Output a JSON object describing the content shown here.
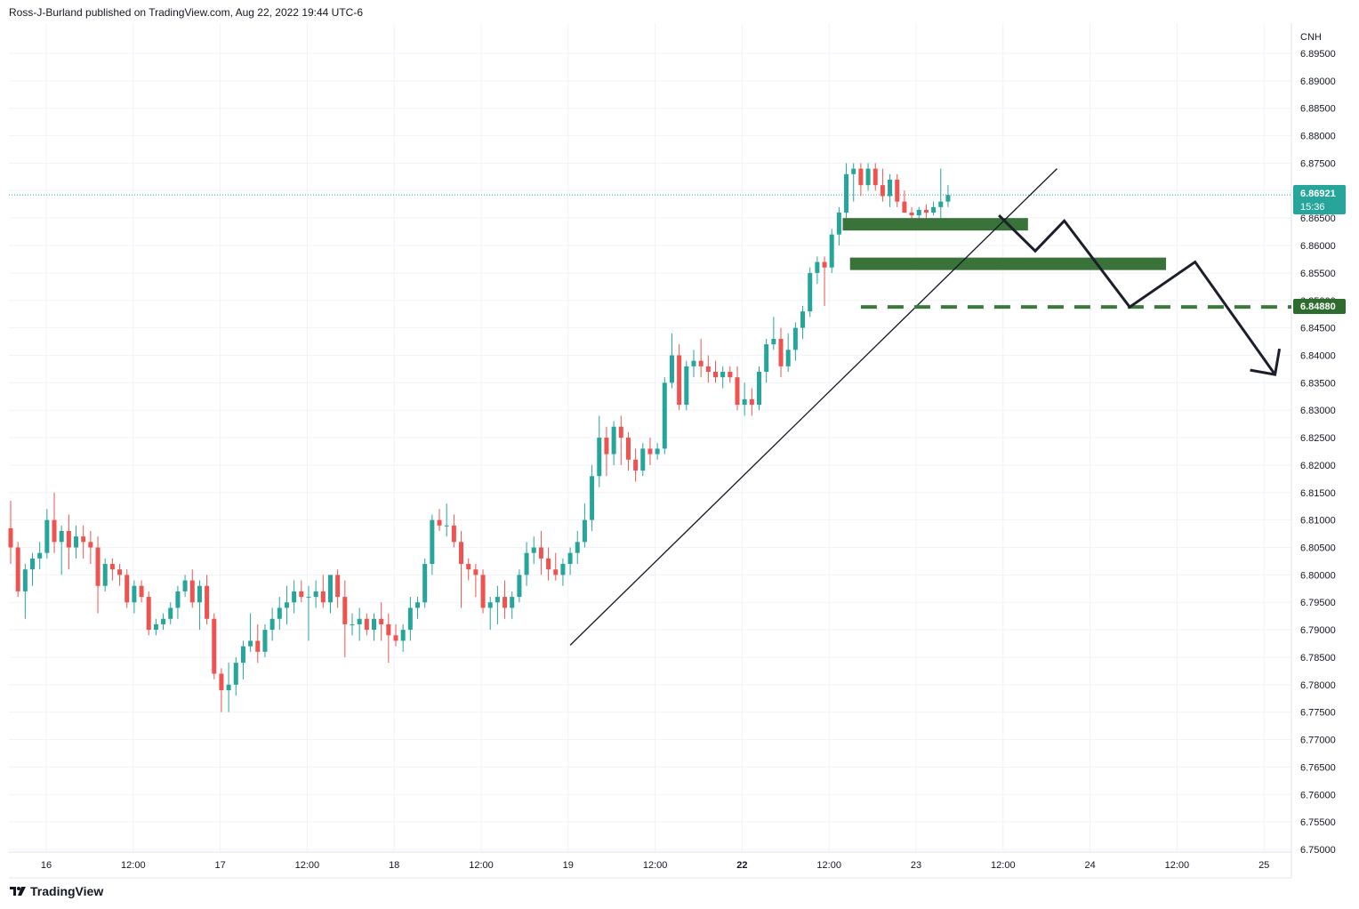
{
  "header": {
    "publish_line": "Ross-J-Burland published on TradingView.com, Aug 22, 2022 19:44 UTC-6"
  },
  "footer": {
    "brand": "TradingView",
    "logo_icon": "tradingview-logo-icon"
  },
  "colors": {
    "up": "#26a69a",
    "down": "#ef5350",
    "zone": "#2e6b2e",
    "support_line": "#3a7a3a",
    "price_badge": "#26a69a",
    "support_badge": "#2e6b2e",
    "grid": "#f0f3fa",
    "trendline": "#131722",
    "projection": "#1c1f2b",
    "last_price_line": "#26a69a"
  },
  "chart_data": {
    "type": "candlestick",
    "symbol": "CNH",
    "currency_label": "CNH",
    "x_tick_labels": [
      "16",
      "12:00",
      "17",
      "12:00",
      "18",
      "12:00",
      "19",
      "12:00",
      "22",
      "12:00",
      "23",
      "12:00",
      "24",
      "12:00",
      "25"
    ],
    "bold_x_ticks": [
      "22"
    ],
    "y_ticks": [
      "6.89500",
      "6.89000",
      "6.88500",
      "6.88000",
      "6.87500",
      "6.87000",
      "6.86500",
      "6.86000",
      "6.85500",
      "6.85000",
      "6.84500",
      "6.84000",
      "6.83500",
      "6.83000",
      "6.82500",
      "6.82000",
      "6.81500",
      "6.81000",
      "6.80500",
      "6.80000",
      "6.79500",
      "6.79000",
      "6.78500",
      "6.78000",
      "6.77500",
      "6.77000",
      "6.76500",
      "6.76000",
      "6.75500",
      "6.75000"
    ],
    "ylim": [
      6.7495,
      6.8995
    ],
    "grid": true,
    "last_price": {
      "value": "6.86921",
      "countdown": "15:36"
    },
    "support_level": {
      "value": "6.84880"
    },
    "candles": [
      {
        "o": 6.8085,
        "h": 6.8135,
        "l": 6.802,
        "c": 6.805
      },
      {
        "o": 6.805,
        "h": 6.806,
        "l": 6.796,
        "c": 6.797
      },
      {
        "o": 6.797,
        "h": 6.802,
        "l": 6.792,
        "c": 6.801
      },
      {
        "o": 6.801,
        "h": 6.804,
        "l": 6.798,
        "c": 6.803
      },
      {
        "o": 6.803,
        "h": 6.806,
        "l": 6.801,
        "c": 6.804
      },
      {
        "o": 6.804,
        "h": 6.812,
        "l": 6.803,
        "c": 6.81
      },
      {
        "o": 6.81,
        "h": 6.815,
        "l": 6.804,
        "c": 6.806
      },
      {
        "o": 6.806,
        "h": 6.809,
        "l": 6.8,
        "c": 6.808
      },
      {
        "o": 6.808,
        "h": 6.811,
        "l": 6.801,
        "c": 6.805
      },
      {
        "o": 6.805,
        "h": 6.809,
        "l": 6.803,
        "c": 6.807
      },
      {
        "o": 6.807,
        "h": 6.809,
        "l": 6.803,
        "c": 6.806
      },
      {
        "o": 6.806,
        "h": 6.808,
        "l": 6.802,
        "c": 6.805
      },
      {
        "o": 6.805,
        "h": 6.807,
        "l": 6.793,
        "c": 6.798
      },
      {
        "o": 6.798,
        "h": 6.803,
        "l": 6.797,
        "c": 6.802
      },
      {
        "o": 6.802,
        "h": 6.803,
        "l": 6.799,
        "c": 6.801
      },
      {
        "o": 6.801,
        "h": 6.802,
        "l": 6.798,
        "c": 6.8
      },
      {
        "o": 6.8,
        "h": 6.801,
        "l": 6.794,
        "c": 6.795
      },
      {
        "o": 6.795,
        "h": 6.799,
        "l": 6.793,
        "c": 6.798
      },
      {
        "o": 6.798,
        "h": 6.799,
        "l": 6.795,
        "c": 6.796
      },
      {
        "o": 6.796,
        "h": 6.797,
        "l": 6.789,
        "c": 6.79
      },
      {
        "o": 6.79,
        "h": 6.792,
        "l": 6.789,
        "c": 6.791
      },
      {
        "o": 6.791,
        "h": 6.793,
        "l": 6.79,
        "c": 6.792
      },
      {
        "o": 6.792,
        "h": 6.795,
        "l": 6.791,
        "c": 6.794
      },
      {
        "o": 6.794,
        "h": 6.798,
        "l": 6.792,
        "c": 6.797
      },
      {
        "o": 6.797,
        "h": 6.8,
        "l": 6.796,
        "c": 6.799
      },
      {
        "o": 6.799,
        "h": 6.801,
        "l": 6.794,
        "c": 6.795
      },
      {
        "o": 6.795,
        "h": 6.799,
        "l": 6.79,
        "c": 6.798
      },
      {
        "o": 6.798,
        "h": 6.8,
        "l": 6.791,
        "c": 6.792
      },
      {
        "o": 6.792,
        "h": 6.793,
        "l": 6.781,
        "c": 6.782
      },
      {
        "o": 6.782,
        "h": 6.783,
        "l": 6.775,
        "c": 6.779
      },
      {
        "o": 6.779,
        "h": 6.784,
        "l": 6.775,
        "c": 6.78
      },
      {
        "o": 6.78,
        "h": 6.785,
        "l": 6.778,
        "c": 6.784
      },
      {
        "o": 6.784,
        "h": 6.788,
        "l": 6.781,
        "c": 6.787
      },
      {
        "o": 6.787,
        "h": 6.793,
        "l": 6.786,
        "c": 6.788
      },
      {
        "o": 6.788,
        "h": 6.791,
        "l": 6.784,
        "c": 6.786
      },
      {
        "o": 6.786,
        "h": 6.791,
        "l": 6.785,
        "c": 6.79
      },
      {
        "o": 6.79,
        "h": 6.794,
        "l": 6.788,
        "c": 6.792
      },
      {
        "o": 6.792,
        "h": 6.796,
        "l": 6.79,
        "c": 6.794
      },
      {
        "o": 6.794,
        "h": 6.798,
        "l": 6.791,
        "c": 6.795
      },
      {
        "o": 6.795,
        "h": 6.799,
        "l": 6.793,
        "c": 6.797
      },
      {
        "o": 6.797,
        "h": 6.799,
        "l": 6.795,
        "c": 6.796
      },
      {
        "o": 6.796,
        "h": 6.798,
        "l": 6.788,
        "c": 6.796
      },
      {
        "o": 6.796,
        "h": 6.799,
        "l": 6.794,
        "c": 6.797
      },
      {
        "o": 6.797,
        "h": 6.8,
        "l": 6.794,
        "c": 6.795
      },
      {
        "o": 6.795,
        "h": 6.8,
        "l": 6.793,
        "c": 6.8
      },
      {
        "o": 6.8,
        "h": 6.801,
        "l": 6.794,
        "c": 6.796
      },
      {
        "o": 6.796,
        "h": 6.799,
        "l": 6.785,
        "c": 6.791
      },
      {
        "o": 6.791,
        "h": 6.793,
        "l": 6.789,
        "c": 6.791
      },
      {
        "o": 6.791,
        "h": 6.794,
        "l": 6.788,
        "c": 6.792
      },
      {
        "o": 6.792,
        "h": 6.793,
        "l": 6.789,
        "c": 6.79
      },
      {
        "o": 6.79,
        "h": 6.793,
        "l": 6.788,
        "c": 6.792
      },
      {
        "o": 6.792,
        "h": 6.795,
        "l": 6.788,
        "c": 6.791
      },
      {
        "o": 6.791,
        "h": 6.793,
        "l": 6.784,
        "c": 6.789
      },
      {
        "o": 6.789,
        "h": 6.791,
        "l": 6.787,
        "c": 6.788
      },
      {
        "o": 6.788,
        "h": 6.791,
        "l": 6.786,
        "c": 6.79
      },
      {
        "o": 6.79,
        "h": 6.796,
        "l": 6.788,
        "c": 6.794
      },
      {
        "o": 6.794,
        "h": 6.796,
        "l": 6.792,
        "c": 6.795
      },
      {
        "o": 6.795,
        "h": 6.803,
        "l": 6.794,
        "c": 6.802
      },
      {
        "o": 6.802,
        "h": 6.811,
        "l": 6.8,
        "c": 6.81
      },
      {
        "o": 6.81,
        "h": 6.812,
        "l": 6.808,
        "c": 6.809
      },
      {
        "o": 6.809,
        "h": 6.813,
        "l": 6.807,
        "c": 6.809
      },
      {
        "o": 6.809,
        "h": 6.811,
        "l": 6.805,
        "c": 6.806
      },
      {
        "o": 6.806,
        "h": 6.808,
        "l": 6.794,
        "c": 6.802
      },
      {
        "o": 6.802,
        "h": 6.803,
        "l": 6.799,
        "c": 6.801
      },
      {
        "o": 6.801,
        "h": 6.802,
        "l": 6.796,
        "c": 6.8
      },
      {
        "o": 6.8,
        "h": 6.801,
        "l": 6.793,
        "c": 6.794
      },
      {
        "o": 6.794,
        "h": 6.796,
        "l": 6.79,
        "c": 6.795
      },
      {
        "o": 6.795,
        "h": 6.798,
        "l": 6.791,
        "c": 6.796
      },
      {
        "o": 6.796,
        "h": 6.799,
        "l": 6.792,
        "c": 6.794
      },
      {
        "o": 6.794,
        "h": 6.797,
        "l": 6.792,
        "c": 6.796
      },
      {
        "o": 6.796,
        "h": 6.801,
        "l": 6.795,
        "c": 6.8
      },
      {
        "o": 6.8,
        "h": 6.806,
        "l": 6.798,
        "c": 6.804
      },
      {
        "o": 6.804,
        "h": 6.807,
        "l": 6.802,
        "c": 6.805
      },
      {
        "o": 6.805,
        "h": 6.808,
        "l": 6.8,
        "c": 6.803
      },
      {
        "o": 6.803,
        "h": 6.805,
        "l": 6.799,
        "c": 6.801
      },
      {
        "o": 6.801,
        "h": 6.804,
        "l": 6.799,
        "c": 6.8
      },
      {
        "o": 6.8,
        "h": 6.803,
        "l": 6.798,
        "c": 6.802
      },
      {
        "o": 6.802,
        "h": 6.805,
        "l": 6.8,
        "c": 6.804
      },
      {
        "o": 6.804,
        "h": 6.808,
        "l": 6.802,
        "c": 6.806
      },
      {
        "o": 6.806,
        "h": 6.813,
        "l": 6.805,
        "c": 6.81
      },
      {
        "o": 6.81,
        "h": 6.82,
        "l": 6.808,
        "c": 6.818
      },
      {
        "o": 6.818,
        "h": 6.829,
        "l": 6.816,
        "c": 6.825
      },
      {
        "o": 6.825,
        "h": 6.827,
        "l": 6.818,
        "c": 6.822
      },
      {
        "o": 6.822,
        "h": 6.828,
        "l": 6.82,
        "c": 6.827
      },
      {
        "o": 6.827,
        "h": 6.829,
        "l": 6.82,
        "c": 6.825
      },
      {
        "o": 6.825,
        "h": 6.826,
        "l": 6.819,
        "c": 6.821
      },
      {
        "o": 6.821,
        "h": 6.823,
        "l": 6.817,
        "c": 6.819
      },
      {
        "o": 6.819,
        "h": 6.824,
        "l": 6.818,
        "c": 6.823
      },
      {
        "o": 6.823,
        "h": 6.825,
        "l": 6.82,
        "c": 6.822
      },
      {
        "o": 6.822,
        "h": 6.824,
        "l": 6.821,
        "c": 6.823
      },
      {
        "o": 6.823,
        "h": 6.836,
        "l": 6.822,
        "c": 6.835
      },
      {
        "o": 6.835,
        "h": 6.844,
        "l": 6.834,
        "c": 6.84
      },
      {
        "o": 6.84,
        "h": 6.842,
        "l": 6.83,
        "c": 6.831
      },
      {
        "o": 6.831,
        "h": 6.839,
        "l": 6.83,
        "c": 6.838
      },
      {
        "o": 6.838,
        "h": 6.841,
        "l": 6.836,
        "c": 6.839
      },
      {
        "o": 6.839,
        "h": 6.843,
        "l": 6.836,
        "c": 6.838
      },
      {
        "o": 6.838,
        "h": 6.84,
        "l": 6.835,
        "c": 6.837
      },
      {
        "o": 6.837,
        "h": 6.839,
        "l": 6.835,
        "c": 6.836
      },
      {
        "o": 6.836,
        "h": 6.838,
        "l": 6.834,
        "c": 6.837
      },
      {
        "o": 6.837,
        "h": 6.838,
        "l": 6.835,
        "c": 6.836
      },
      {
        "o": 6.836,
        "h": 6.838,
        "l": 6.83,
        "c": 6.831
      },
      {
        "o": 6.831,
        "h": 6.835,
        "l": 6.829,
        "c": 6.832
      },
      {
        "o": 6.832,
        "h": 6.834,
        "l": 6.829,
        "c": 6.831
      },
      {
        "o": 6.831,
        "h": 6.838,
        "l": 6.83,
        "c": 6.837
      },
      {
        "o": 6.837,
        "h": 6.843,
        "l": 6.835,
        "c": 6.842
      },
      {
        "o": 6.842,
        "h": 6.847,
        "l": 6.841,
        "c": 6.843
      },
      {
        "o": 6.843,
        "h": 6.845,
        "l": 6.836,
        "c": 6.838
      },
      {
        "o": 6.838,
        "h": 6.844,
        "l": 6.837,
        "c": 6.841
      },
      {
        "o": 6.841,
        "h": 6.846,
        "l": 6.839,
        "c": 6.845
      },
      {
        "o": 6.845,
        "h": 6.849,
        "l": 6.843,
        "c": 6.848
      },
      {
        "o": 6.848,
        "h": 6.856,
        "l": 6.847,
        "c": 6.855
      },
      {
        "o": 6.855,
        "h": 6.858,
        "l": 6.853,
        "c": 6.857
      },
      {
        "o": 6.857,
        "h": 6.858,
        "l": 6.849,
        "c": 6.856
      },
      {
        "o": 6.856,
        "h": 6.863,
        "l": 6.855,
        "c": 6.862
      },
      {
        "o": 6.862,
        "h": 6.867,
        "l": 6.86,
        "c": 6.866
      },
      {
        "o": 6.866,
        "h": 6.875,
        "l": 6.865,
        "c": 6.873
      },
      {
        "o": 6.873,
        "h": 6.875,
        "l": 6.868,
        "c": 6.874
      },
      {
        "o": 6.874,
        "h": 6.875,
        "l": 6.869,
        "c": 6.871
      },
      {
        "o": 6.871,
        "h": 6.875,
        "l": 6.87,
        "c": 6.874
      },
      {
        "o": 6.874,
        "h": 6.875,
        "l": 6.87,
        "c": 6.871
      },
      {
        "o": 6.871,
        "h": 6.874,
        "l": 6.868,
        "c": 6.869
      },
      {
        "o": 6.869,
        "h": 6.873,
        "l": 6.867,
        "c": 6.872
      },
      {
        "o": 6.872,
        "h": 6.873,
        "l": 6.867,
        "c": 6.868
      },
      {
        "o": 6.868,
        "h": 6.87,
        "l": 6.866,
        "c": 6.866
      },
      {
        "o": 6.866,
        "h": 6.867,
        "l": 6.865,
        "c": 6.8655
      },
      {
        "o": 6.8655,
        "h": 6.867,
        "l": 6.865,
        "c": 6.8665
      },
      {
        "o": 6.8665,
        "h": 6.8675,
        "l": 6.865,
        "c": 6.866
      },
      {
        "o": 6.866,
        "h": 6.868,
        "l": 6.8655,
        "c": 6.867
      },
      {
        "o": 6.867,
        "h": 6.874,
        "l": 6.865,
        "c": 6.868
      },
      {
        "o": 6.868,
        "h": 6.871,
        "l": 6.867,
        "c": 6.8692
      }
    ],
    "zones": [
      {
        "from_candle": 115,
        "to_candle": 140,
        "top": 6.865,
        "bottom": 6.8635
      },
      {
        "from_candle": 116,
        "to_candle": 159,
        "top": 6.8578,
        "bottom": 6.8568
      }
    ],
    "trendline": {
      "from": {
        "candle": 77,
        "price": 6.7872
      },
      "to": {
        "candle": 144,
        "price": 6.874
      }
    },
    "projection_path": [
      {
        "candle": 136,
        "price": 6.8655
      },
      {
        "candle": 141,
        "price": 6.859
      },
      {
        "candle": 145,
        "price": 6.8645
      },
      {
        "candle": 154,
        "price": 6.8488
      },
      {
        "candle": 163,
        "price": 6.857
      },
      {
        "candle": 174,
        "price": 6.8365
      }
    ]
  }
}
